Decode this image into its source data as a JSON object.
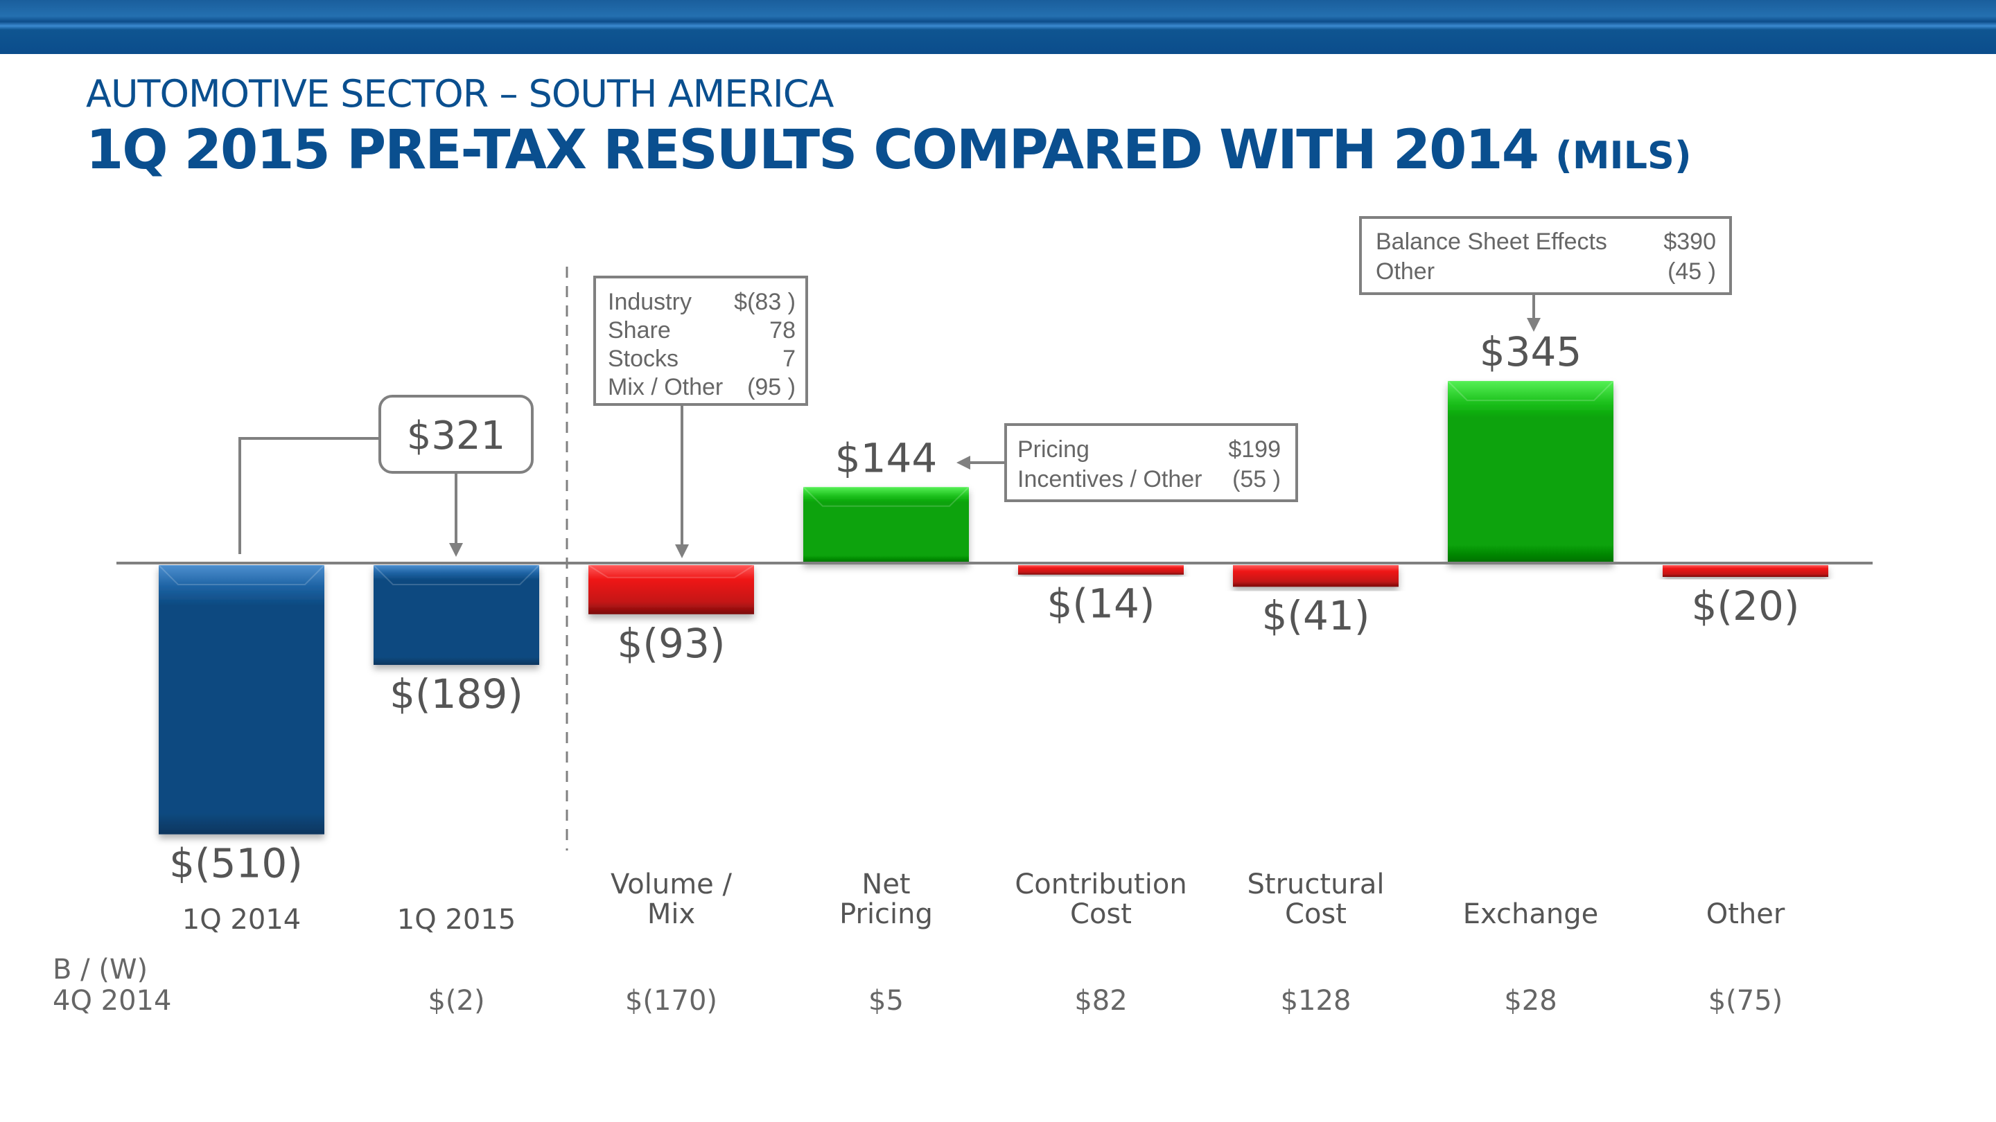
{
  "header": {
    "subtitle": "AUTOMOTIVE SECTOR – SOUTH AMERICA",
    "title": "1Q 2015 PRE-TAX RESULTS COMPARED WITH 2014",
    "units": "(MILS)"
  },
  "colors": {
    "title": "#0a4f8f",
    "total_bar": "#0b4a80",
    "positive_bar": "#08a10a",
    "negative_bar": "#e81010",
    "text": "#555555",
    "line": "#808080"
  },
  "chart_data": {
    "type": "bar",
    "subtype": "waterfall",
    "title": "1Q 2015 PRE-TAX RESULTS COMPARED WITH 2014 (MILS)",
    "xlabel": "",
    "ylabel": "",
    "ylim": [
      -550,
      400
    ],
    "grid": false,
    "categories": [
      [
        "1Q 2014"
      ],
      [
        "1Q 2015"
      ],
      [
        "Volume /",
        "Mix"
      ],
      [
        "Net",
        "Pricing"
      ],
      [
        "Contribution",
        "Cost"
      ],
      [
        "Structural",
        "Cost"
      ],
      [
        "Exchange"
      ],
      [
        "Other"
      ]
    ],
    "values": [
      -510,
      -189,
      -93,
      144,
      -14,
      -41,
      345,
      -20
    ],
    "kinds": [
      "total",
      "total",
      "change",
      "change",
      "change",
      "change",
      "change",
      "change"
    ],
    "value_labels": [
      "$(510)",
      "$(189)",
      "$(93)",
      "$144",
      "$(14)",
      "$(41)",
      "$345",
      "$(20)"
    ],
    "bw_row": {
      "label_line1": "B / (W)",
      "label_line2": "4Q 2014",
      "values": [
        "",
        "$(2)",
        "$(170)",
        "$5",
        "$82",
        "$128",
        "$28",
        "$(75)"
      ]
    },
    "annotations": {
      "change_callout": "$321",
      "volume_mix_box": [
        {
          "label": "Industry",
          "value": "$(83 )"
        },
        {
          "label": "Share",
          "value": "78"
        },
        {
          "label": "Stocks",
          "value": "7"
        },
        {
          "label": "Mix / Other",
          "value": "(95 )"
        }
      ],
      "net_pricing_box": [
        {
          "label": "Pricing",
          "value": "$199"
        },
        {
          "label": "Incentives / Other",
          "value": "(55 )"
        }
      ],
      "exchange_box": [
        {
          "label": "Balance Sheet Effects",
          "value": "$390"
        },
        {
          "label": "Other",
          "value": "(45 )"
        }
      ]
    }
  }
}
